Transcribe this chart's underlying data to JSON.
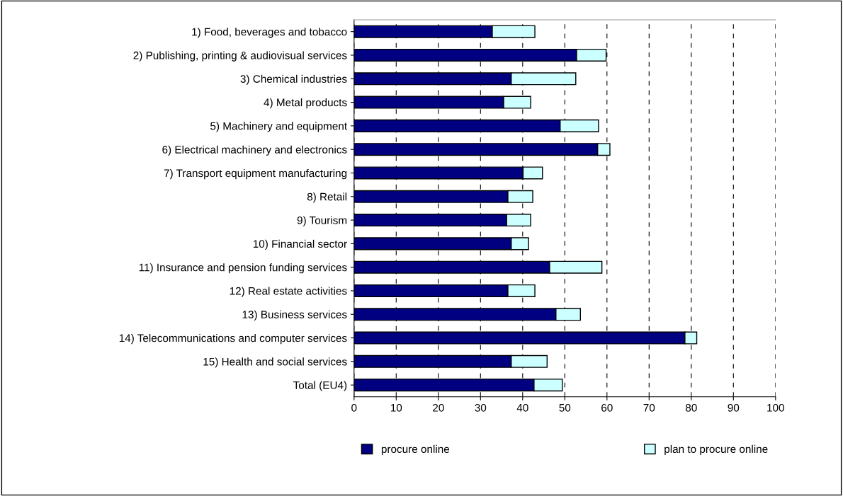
{
  "chart_data": {
    "type": "bar",
    "orientation": "horizontal",
    "stacked": true,
    "categories": [
      "1) Food, beverages and tobacco",
      "2) Publishing, printing & audiovisual services",
      "3) Chemical industries",
      "4) Metal products",
      "5) Machinery and equipment",
      "6) Electrical machinery and electronics",
      "7) Transport equipment manufacturing",
      "8) Retail",
      "9) Tourism",
      "10) Financial sector",
      "11) Insurance and pension funding services",
      "12) Real estate activities",
      "13) Business services",
      "14) Telecommunications and computer services",
      "15) Health and social services",
      "Total (EU4)"
    ],
    "series": [
      {
        "name": "procure online",
        "color": "#000080",
        "values": [
          32.8,
          52.8,
          37.3,
          35.5,
          48.9,
          57.8,
          40.1,
          36.5,
          36.2,
          37.3,
          46.4,
          36.5,
          47.9,
          78.5,
          37.3,
          42.7
        ]
      },
      {
        "name": "plan to procure online",
        "color": "#ccffff",
        "values": [
          10.1,
          7.0,
          15.3,
          6.4,
          9.1,
          2.9,
          4.6,
          5.9,
          5.7,
          4.1,
          12.4,
          6.4,
          5.8,
          2.8,
          8.5,
          6.7
        ]
      }
    ],
    "xlim": [
      0,
      100
    ],
    "xticks": [
      0,
      10,
      20,
      30,
      40,
      50,
      60,
      70,
      80,
      90,
      100
    ],
    "grid": "x",
    "legend": "bottom"
  }
}
